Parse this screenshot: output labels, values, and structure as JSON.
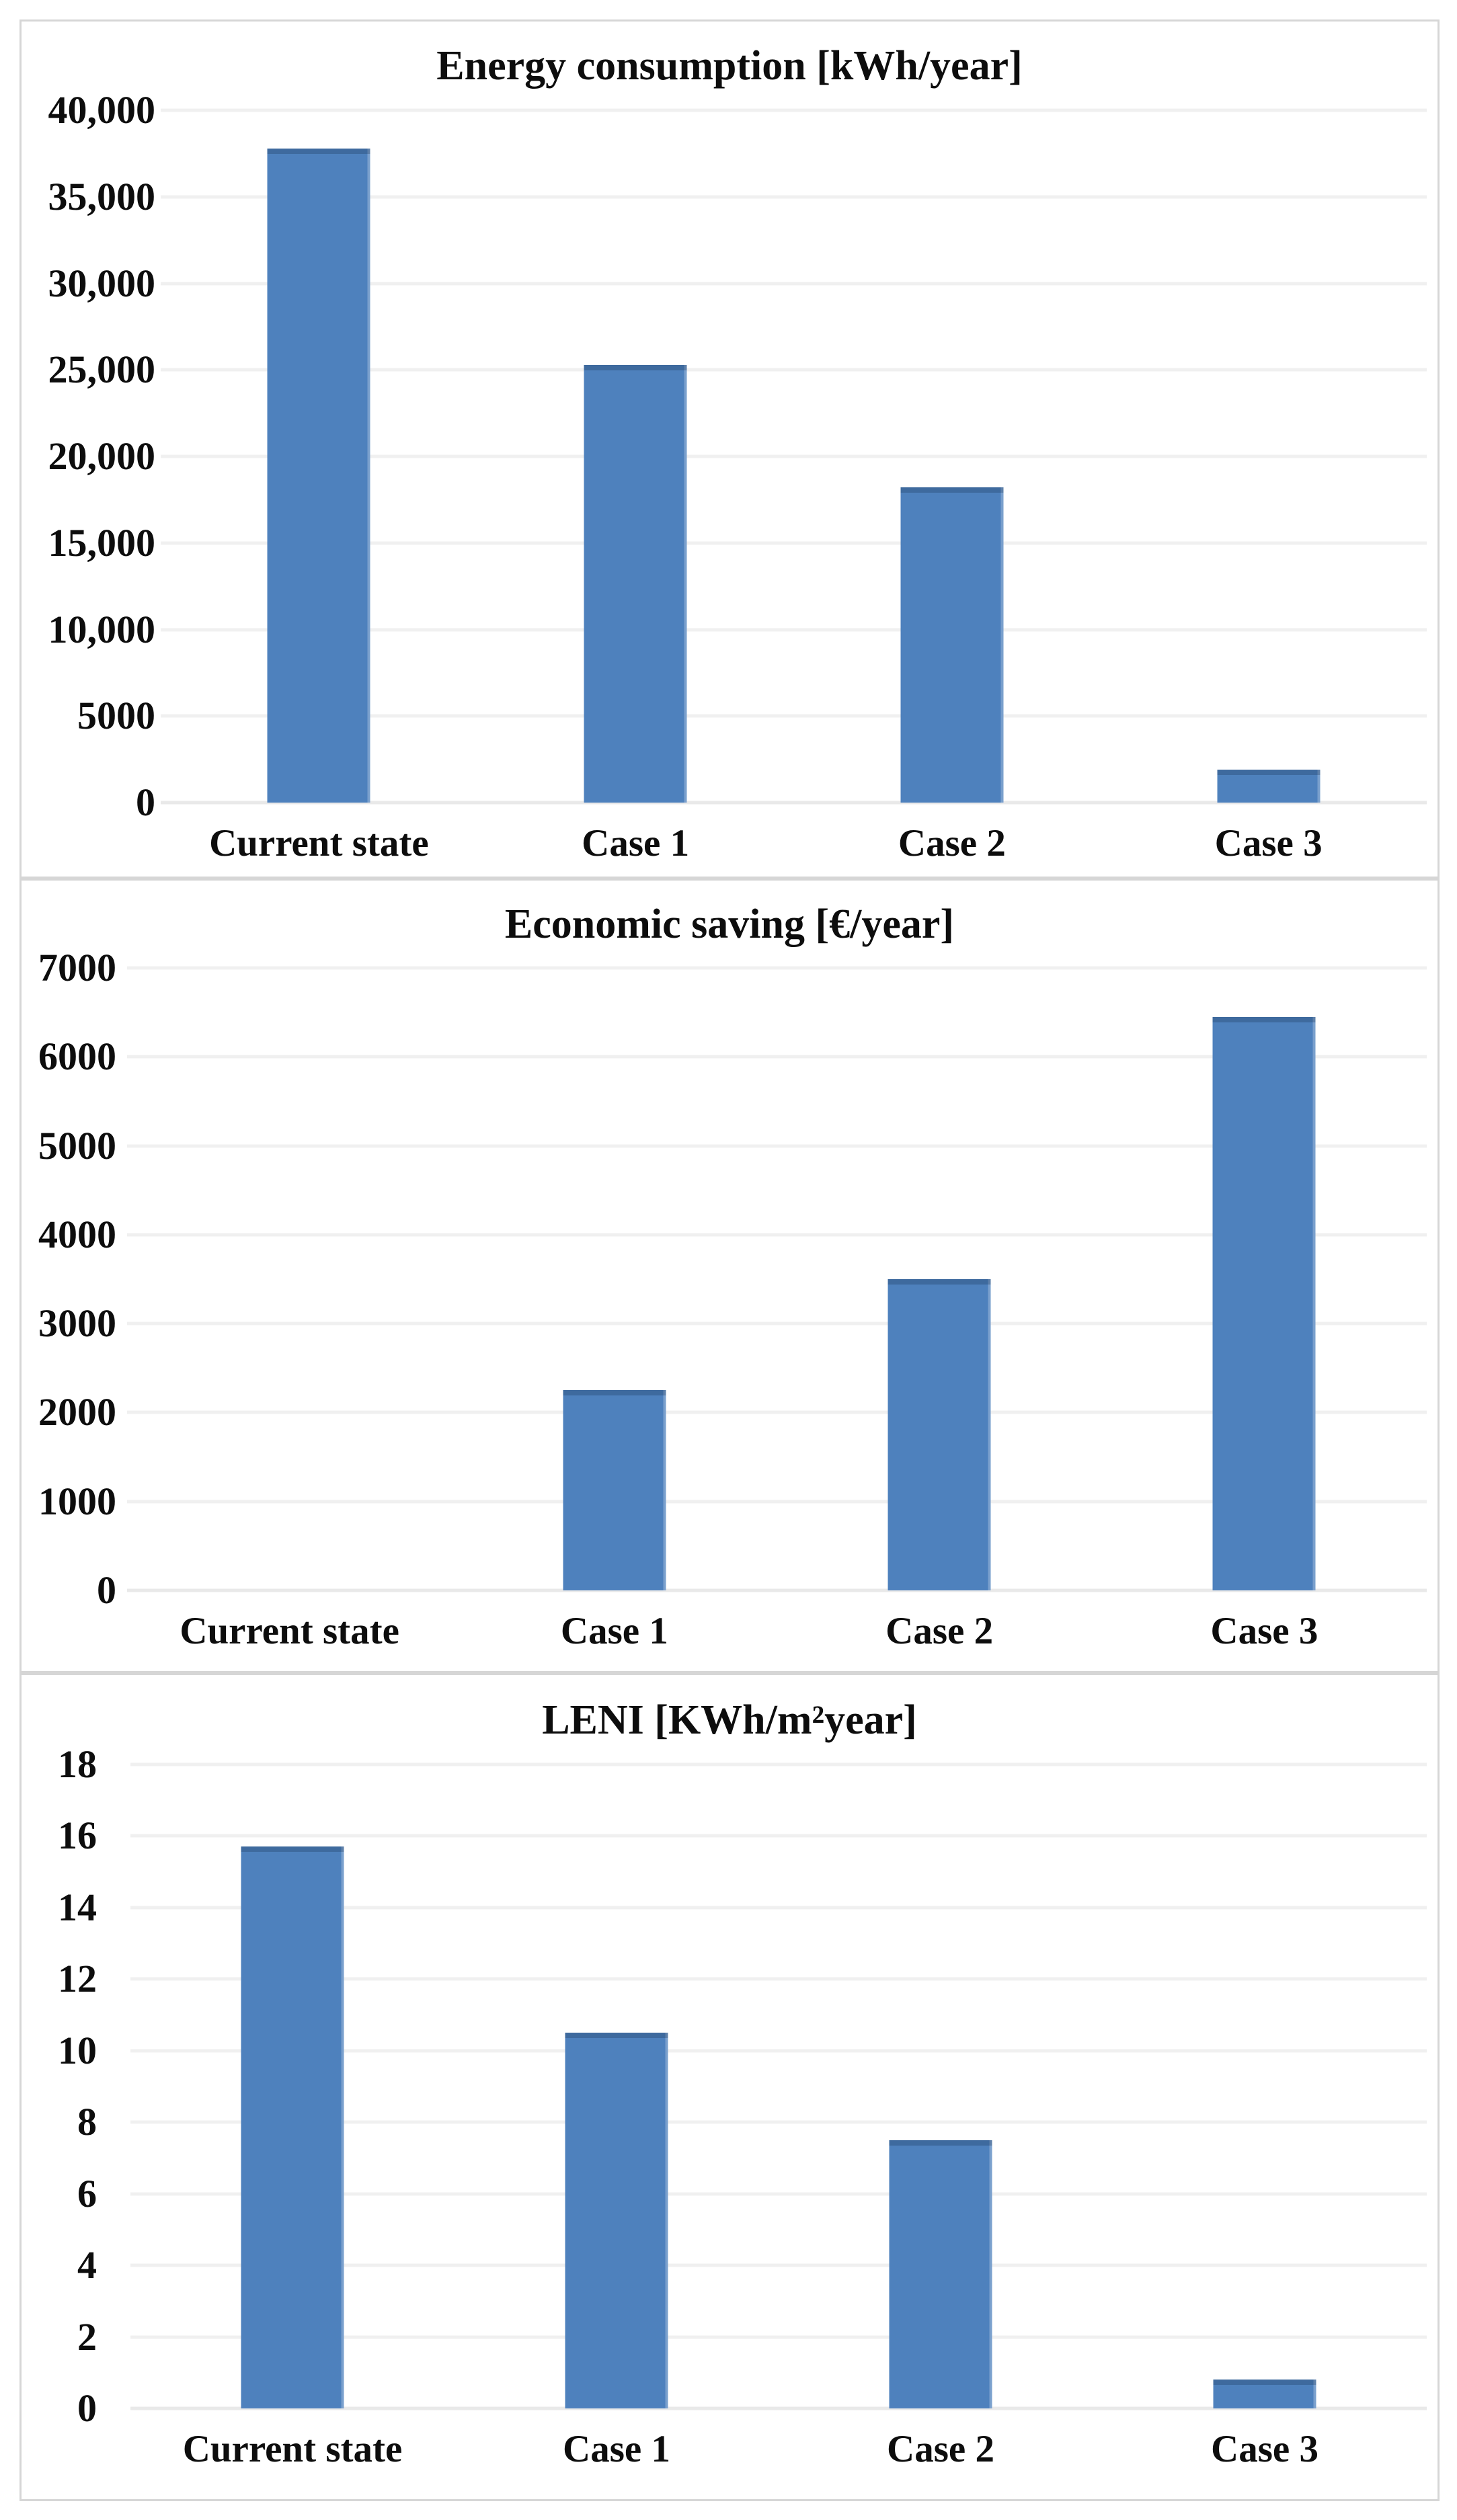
{
  "figure": {
    "background": "#ffffff",
    "panel_border_color": "#d6d6d6",
    "bar_color": "#4e81bd",
    "gridline_color": "#f0f0f0",
    "text_color": "#0d0d0d"
  },
  "chart_data": [
    {
      "type": "bar",
      "title": "Energy consumption [kWh/year]",
      "categories": [
        "Current state",
        "Case 1",
        "Case 2",
        "Case 3"
      ],
      "values": [
        37800,
        25300,
        18200,
        1900
      ],
      "xlabel": "",
      "ylabel": "",
      "ylim": [
        0,
        40000
      ],
      "ytick_labels": [
        "40,000",
        "35,000",
        "30,000",
        "25,000",
        "20,000",
        "15,000",
        "10,000",
        "5000",
        "0"
      ],
      "grid": true,
      "legend": false,
      "bar_color": "#4e81bd"
    },
    {
      "type": "bar",
      "title": "Economic saving [€/year]",
      "categories": [
        "Current state",
        "Case 1",
        "Case 2",
        "Case 3"
      ],
      "values": [
        0,
        2250,
        3500,
        6450
      ],
      "xlabel": "",
      "ylabel": "",
      "ylim": [
        0,
        7000
      ],
      "ytick_labels": [
        "7000",
        "6000",
        "5000",
        "4000",
        "3000",
        "2000",
        "1000",
        "0"
      ],
      "grid": true,
      "legend": false,
      "bar_color": "#4e81bd"
    },
    {
      "type": "bar",
      "title": "LENI [KWh/m²year]",
      "categories": [
        "Current state",
        "Case 1",
        "Case 2",
        "Case 3"
      ],
      "values": [
        15.7,
        10.5,
        7.5,
        0.8
      ],
      "xlabel": "",
      "ylabel": "",
      "ylim": [
        0,
        18
      ],
      "ytick_labels": [
        "18",
        "16",
        "14",
        "12",
        "10",
        "8",
        "6",
        "4",
        "2",
        "0"
      ],
      "grid": true,
      "legend": false,
      "bar_color": "#4e81bd"
    }
  ]
}
